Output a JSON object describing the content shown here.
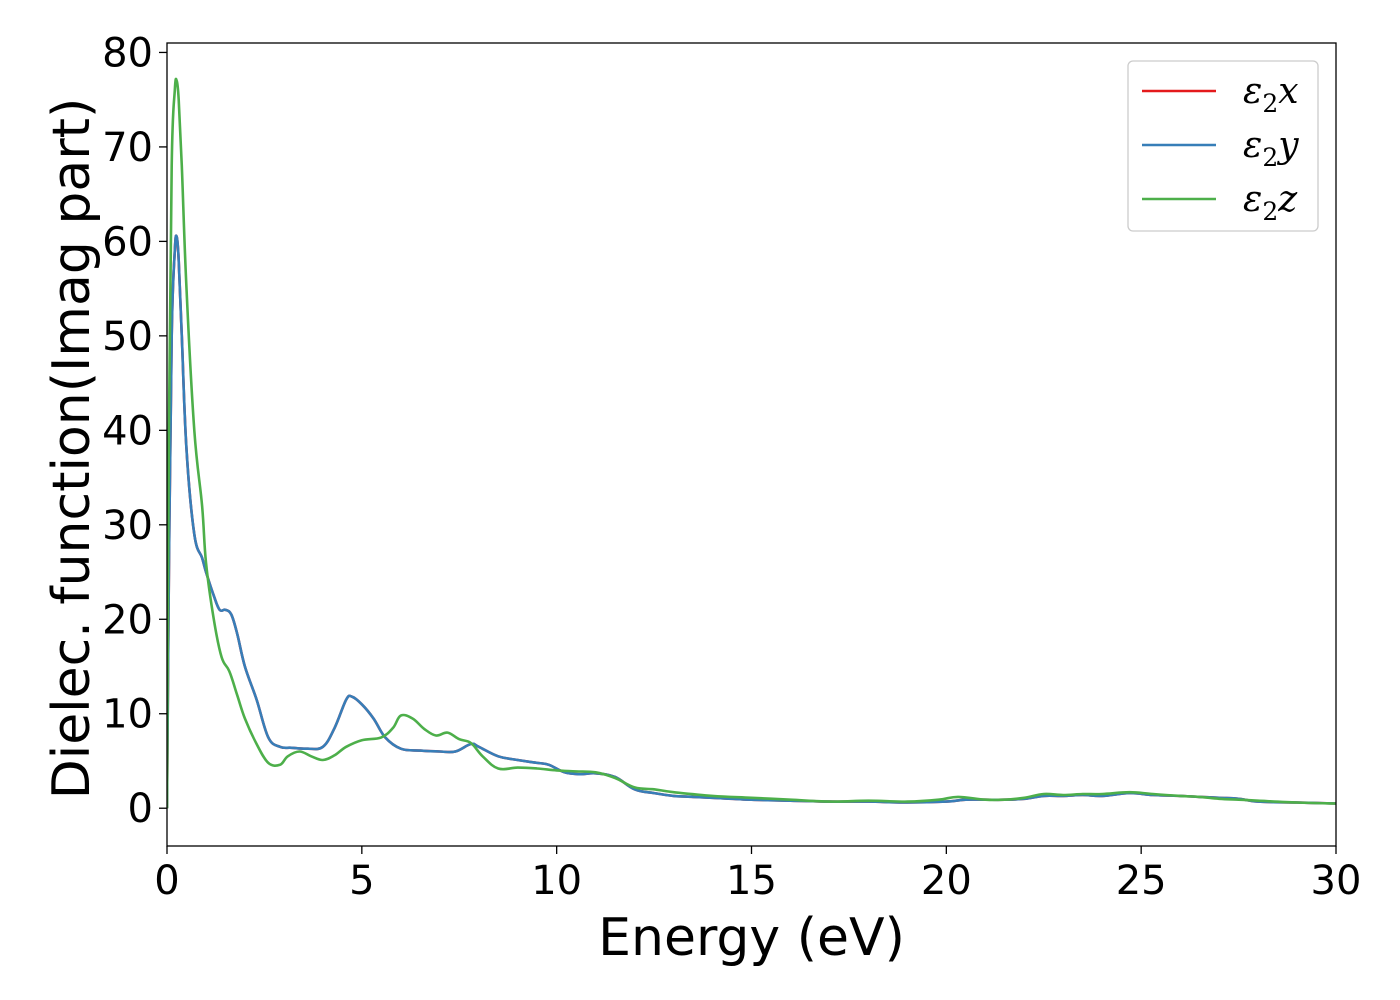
{
  "chart_data": {
    "type": "line",
    "xlabel": "Energy (eV)",
    "ylabel": "Dielec. function(Imag part)",
    "xlim": [
      0,
      30
    ],
    "ylim": [
      -4,
      81
    ],
    "xticks": [
      0,
      5,
      10,
      15,
      20,
      25,
      30
    ],
    "yticks": [
      0,
      10,
      20,
      30,
      40,
      50,
      60,
      70,
      80
    ],
    "xtick_labels": [
      "0",
      "5",
      "10",
      "15",
      "20",
      "25",
      "30"
    ],
    "ytick_labels": [
      "0",
      "10",
      "20",
      "30",
      "40",
      "50",
      "60",
      "70",
      "80"
    ],
    "grid": false,
    "legend": "top-right",
    "series": [
      {
        "name": "ε₂x",
        "legend_base": "ε",
        "legend_sub": "2",
        "legend_var": "x",
        "color": "#e41a1c",
        "x": [
          0,
          0.05,
          0.12,
          0.2,
          0.25,
          0.3,
          0.38,
          0.5,
          0.7,
          0.9,
          1.0,
          1.2,
          1.35,
          1.5,
          1.65,
          1.8,
          2.0,
          2.3,
          2.6,
          2.9,
          3.2,
          3.6,
          4.0,
          4.3,
          4.6,
          4.75,
          5.0,
          5.3,
          5.6,
          6.0,
          6.5,
          7.0,
          7.4,
          7.8,
          8.0,
          8.5,
          9.0,
          9.5,
          9.8,
          10.2,
          10.6,
          11.0,
          11.5,
          12.0,
          12.5,
          13.0,
          13.5,
          14.0,
          15.0,
          16.0,
          17.0,
          18.0,
          19.0,
          20.0,
          20.5,
          21.0,
          21.5,
          22.0,
          22.5,
          23.0,
          23.5,
          24.0,
          24.7,
          25.3,
          26.0,
          26.5,
          27.0,
          27.5,
          28.0,
          29.0,
          30.0
        ],
        "values": [
          0,
          25,
          50,
          59,
          60.5,
          58,
          50,
          38,
          29,
          26.5,
          25,
          22.5,
          21,
          21,
          20.5,
          18.5,
          15,
          11.5,
          7.5,
          6.5,
          6.4,
          6.3,
          6.5,
          8.5,
          11.5,
          11.8,
          11,
          9.5,
          7.5,
          6.3,
          6.1,
          6.0,
          6.0,
          6.8,
          6.5,
          5.5,
          5.1,
          4.8,
          4.6,
          3.8,
          3.6,
          3.7,
          3.3,
          2.0,
          1.6,
          1.3,
          1.2,
          1.1,
          0.9,
          0.8,
          0.7,
          0.7,
          0.6,
          0.7,
          0.9,
          0.9,
          0.9,
          1.0,
          1.3,
          1.3,
          1.4,
          1.3,
          1.6,
          1.4,
          1.3,
          1.2,
          1.1,
          1.0,
          0.7,
          0.6,
          0.5
        ]
      },
      {
        "name": "ε₂y",
        "legend_base": "ε",
        "legend_sub": "2",
        "legend_var": "y",
        "color": "#377eb8",
        "x": [
          0,
          0.05,
          0.12,
          0.2,
          0.25,
          0.3,
          0.38,
          0.5,
          0.7,
          0.9,
          1.0,
          1.2,
          1.35,
          1.5,
          1.65,
          1.8,
          2.0,
          2.3,
          2.6,
          2.9,
          3.2,
          3.6,
          4.0,
          4.3,
          4.6,
          4.75,
          5.0,
          5.3,
          5.6,
          6.0,
          6.5,
          7.0,
          7.4,
          7.8,
          8.0,
          8.5,
          9.0,
          9.5,
          9.8,
          10.2,
          10.6,
          11.0,
          11.5,
          12.0,
          12.5,
          13.0,
          13.5,
          14.0,
          15.0,
          16.0,
          17.0,
          18.0,
          19.0,
          20.0,
          20.5,
          21.0,
          21.5,
          22.0,
          22.5,
          23.0,
          23.5,
          24.0,
          24.7,
          25.3,
          26.0,
          26.5,
          27.0,
          27.5,
          28.0,
          29.0,
          30.0
        ],
        "values": [
          0,
          25,
          50,
          59,
          60.5,
          58,
          50,
          38,
          29,
          26.5,
          25,
          22.5,
          21,
          21,
          20.5,
          18.5,
          15,
          11.5,
          7.5,
          6.5,
          6.4,
          6.3,
          6.5,
          8.5,
          11.5,
          11.8,
          11,
          9.5,
          7.5,
          6.3,
          6.1,
          6.0,
          6.0,
          6.8,
          6.5,
          5.5,
          5.1,
          4.8,
          4.6,
          3.8,
          3.6,
          3.7,
          3.3,
          2.0,
          1.6,
          1.3,
          1.2,
          1.1,
          0.9,
          0.8,
          0.7,
          0.7,
          0.6,
          0.7,
          0.9,
          0.9,
          0.9,
          1.0,
          1.3,
          1.3,
          1.4,
          1.3,
          1.6,
          1.4,
          1.3,
          1.2,
          1.1,
          1.0,
          0.7,
          0.6,
          0.5
        ]
      },
      {
        "name": "ε₂z",
        "legend_base": "ε",
        "legend_sub": "2",
        "legend_var": "z",
        "color": "#4daf4a",
        "x": [
          0,
          0.05,
          0.12,
          0.2,
          0.25,
          0.3,
          0.38,
          0.5,
          0.7,
          0.9,
          1.0,
          1.2,
          1.4,
          1.6,
          1.8,
          2.0,
          2.3,
          2.6,
          2.9,
          3.1,
          3.4,
          3.7,
          4.0,
          4.3,
          4.6,
          5.0,
          5.5,
          5.8,
          6.0,
          6.3,
          6.6,
          6.9,
          7.2,
          7.5,
          7.8,
          8.1,
          8.5,
          9.0,
          9.5,
          10.0,
          10.5,
          11.0,
          11.5,
          12.0,
          12.5,
          13.0,
          14.0,
          15.0,
          16.0,
          17.0,
          18.0,
          19.0,
          19.8,
          20.3,
          21.0,
          21.5,
          22.0,
          22.5,
          23.0,
          23.5,
          24.0,
          24.7,
          25.3,
          26.0,
          26.5,
          27.0,
          27.5,
          28.0,
          29.0,
          30.0
        ],
        "values": [
          0,
          40,
          68,
          76,
          77,
          75,
          68,
          55,
          40,
          32,
          26,
          20,
          16,
          14.5,
          12,
          9.5,
          6.8,
          4.8,
          4.6,
          5.5,
          6.0,
          5.5,
          5.1,
          5.6,
          6.5,
          7.2,
          7.5,
          8.5,
          9.8,
          9.5,
          8.4,
          7.7,
          8.0,
          7.3,
          6.9,
          5.5,
          4.2,
          4.3,
          4.2,
          4.0,
          3.9,
          3.8,
          3.2,
          2.2,
          2.0,
          1.7,
          1.3,
          1.1,
          0.9,
          0.7,
          0.8,
          0.7,
          0.9,
          1.2,
          0.9,
          0.9,
          1.1,
          1.5,
          1.4,
          1.5,
          1.5,
          1.7,
          1.5,
          1.3,
          1.2,
          1.0,
          0.9,
          0.8,
          0.6,
          0.5
        ]
      }
    ]
  }
}
